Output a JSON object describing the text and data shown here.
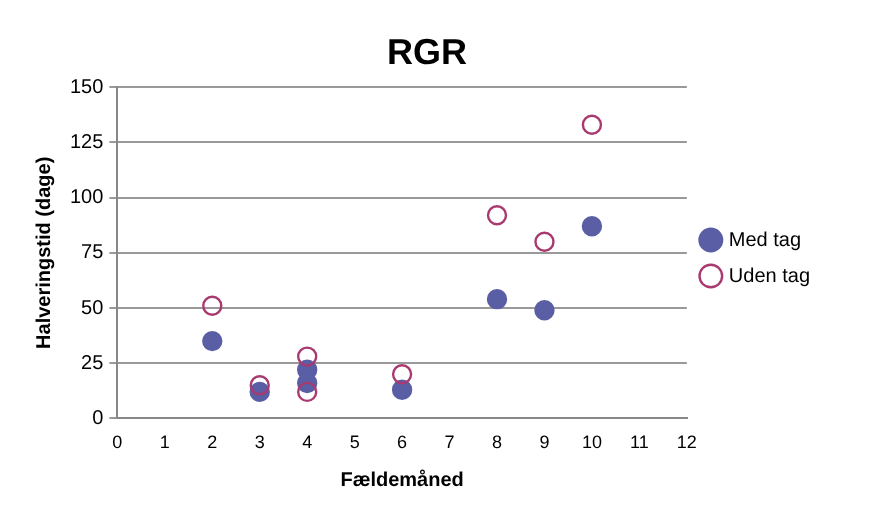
{
  "chart_data": {
    "type": "scatter",
    "title": "RGR",
    "xlabel": "Fældemåned",
    "ylabel": "Halveringstid (dage)",
    "xlim": [
      0,
      12
    ],
    "xticks": [
      0,
      1,
      2,
      3,
      4,
      5,
      6,
      7,
      8,
      9,
      10,
      11,
      12
    ],
    "ylim": [
      0,
      150
    ],
    "yticks": [
      0,
      25,
      50,
      75,
      100,
      125,
      150
    ],
    "grid": "y",
    "legend": "right",
    "marker": "circle",
    "series": [
      {
        "name": "Med tag",
        "color": "#5a5ea4",
        "x": [
          2,
          3,
          4,
          4,
          6,
          8,
          9,
          10
        ],
        "values": [
          35,
          12,
          22,
          16,
          13,
          54,
          49,
          87
        ]
      },
      {
        "name": "Uden tag",
        "color": "#a83a70",
        "x": [
          2,
          3,
          4,
          4,
          6,
          8,
          9,
          10
        ],
        "values": [
          51,
          15,
          28,
          12,
          20,
          92,
          80,
          133
        ]
      }
    ]
  }
}
